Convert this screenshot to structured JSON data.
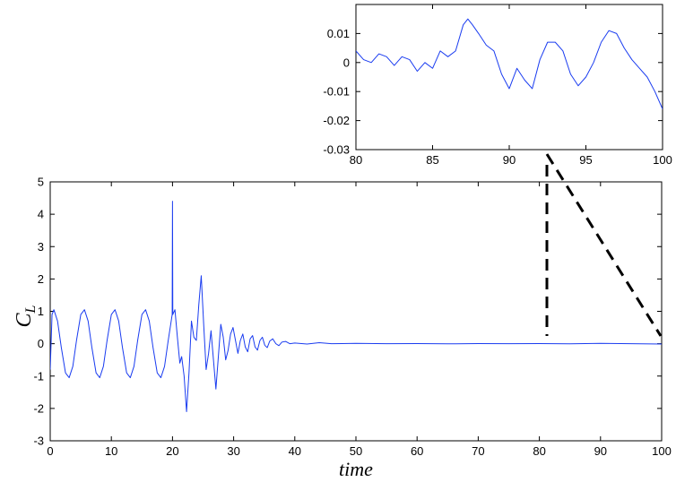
{
  "chart_data": [
    {
      "type": "line",
      "xlabel": "time",
      "ylabel": "C",
      "ylabel_subscript": "L",
      "xlim": [
        0,
        100
      ],
      "ylim": [
        -3,
        5
      ],
      "xticks": [
        0,
        10,
        20,
        30,
        40,
        50,
        60,
        70,
        80,
        90,
        100
      ],
      "xtick_labels": [
        "0",
        "10",
        "20",
        "30",
        "40",
        "50",
        "60",
        "70",
        "80",
        "90",
        "100"
      ],
      "yticks": [
        -3,
        -2,
        -1,
        0,
        1,
        2,
        3,
        4,
        5
      ],
      "ytick_labels": [
        "-3",
        "-2",
        "-1",
        "0",
        "1",
        "2",
        "3",
        "4",
        "5"
      ],
      "grid": false,
      "series_color": "#1a3cf0",
      "series": [
        {
          "x": [
            0,
            0.3,
            0.6,
            1.2,
            1.8,
            2.5,
            3.1,
            3.7,
            4.3,
            5.0,
            5.6,
            6.2,
            6.8,
            7.5,
            8.1,
            8.7,
            9.3,
            10.0,
            10.6,
            11.2,
            11.8,
            12.5,
            13.1,
            13.7,
            14.3,
            15.0,
            15.6,
            16.2,
            16.8,
            17.5,
            18.1,
            18.7,
            19.3,
            19.95,
            20.0,
            20.05,
            20.4,
            20.8,
            21.2,
            21.5,
            21.9,
            22.3,
            22.7,
            23.1,
            23.5,
            23.9,
            24.3,
            24.7,
            25.1,
            25.5,
            25.9,
            26.3,
            26.7,
            27.1,
            27.5,
            27.9,
            28.3,
            28.7,
            29.1,
            29.5,
            29.9,
            30.3,
            30.7,
            31.1,
            31.5,
            31.9,
            32.3,
            32.7,
            33.1,
            33.5,
            33.9,
            34.3,
            34.7,
            35.1,
            35.5,
            35.9,
            36.4,
            36.9,
            37.4,
            37.9,
            38.5,
            39.2,
            40,
            42,
            44,
            46,
            50,
            55,
            60,
            65,
            70,
            75,
            80,
            85,
            90,
            95,
            100
          ],
          "values": [
            -0.8,
            0.9,
            1.05,
            0.7,
            -0.1,
            -0.9,
            -1.05,
            -0.7,
            0.1,
            0.9,
            1.05,
            0.7,
            -0.1,
            -0.9,
            -1.05,
            -0.7,
            0.1,
            0.9,
            1.05,
            0.7,
            -0.1,
            -0.9,
            -1.05,
            -0.7,
            0.1,
            0.9,
            1.05,
            0.7,
            -0.1,
            -0.9,
            -1.05,
            -0.7,
            0.1,
            0.9,
            4.4,
            0.9,
            1.05,
            0.2,
            -0.6,
            -0.4,
            -1.0,
            -2.1,
            -0.9,
            0.7,
            0.2,
            0.1,
            1.2,
            2.1,
            0.6,
            -0.8,
            -0.3,
            0.4,
            -0.5,
            -1.4,
            -0.4,
            0.6,
            0.2,
            -0.5,
            -0.2,
            0.3,
            0.5,
            0.1,
            -0.3,
            0.1,
            0.3,
            -0.1,
            -0.25,
            0.15,
            0.25,
            -0.1,
            -0.2,
            0.1,
            0.2,
            -0.05,
            -0.12,
            0.08,
            0.15,
            0.0,
            -0.06,
            0.05,
            0.07,
            0.0,
            0.02,
            -0.01,
            0.03,
            0.0,
            0.01,
            0.0,
            0.005,
            -0.005,
            0.005,
            0.0,
            0.005,
            -0.005,
            0.01,
            0.0,
            -0.01
          ]
        }
      ]
    },
    {
      "type": "line",
      "xlim": [
        80,
        100
      ],
      "ylim": [
        -0.03,
        0.02
      ],
      "xticks": [
        80,
        85,
        90,
        95,
        100
      ],
      "xtick_labels": [
        "80",
        "85",
        "90",
        "95",
        "100"
      ],
      "yticks": [
        0.01,
        0,
        -0.01,
        -0.02,
        -0.03
      ],
      "ytick_labels": [
        "0.01",
        "0",
        "-0.01",
        "-0.02",
        "-0.03"
      ],
      "grid": false,
      "series_color": "#1a3cf0",
      "series": [
        {
          "x": [
            80,
            80.5,
            81,
            81.5,
            82,
            82.5,
            83,
            83.5,
            84,
            84.5,
            85,
            85.5,
            86,
            86.5,
            87,
            87.3,
            87.6,
            88,
            88.5,
            89,
            89.5,
            90,
            90.5,
            91,
            91.5,
            92,
            92.5,
            93,
            93.5,
            94,
            94.5,
            95,
            95.5,
            96,
            96.5,
            97,
            97.5,
            98,
            98.5,
            99,
            99.5,
            100
          ],
          "values": [
            0.004,
            0.001,
            0.0,
            0.003,
            0.002,
            -0.001,
            0.002,
            0.001,
            -0.003,
            0.0,
            -0.002,
            0.004,
            0.002,
            0.004,
            0.013,
            0.015,
            0.013,
            0.01,
            0.006,
            0.004,
            -0.004,
            -0.009,
            -0.002,
            -0.006,
            -0.009,
            0.001,
            0.007,
            0.007,
            0.004,
            -0.004,
            -0.008,
            -0.005,
            0.0,
            0.007,
            0.011,
            0.01,
            0.005,
            0.001,
            -0.002,
            -0.005,
            -0.01,
            -0.016
          ]
        }
      ]
    }
  ]
}
